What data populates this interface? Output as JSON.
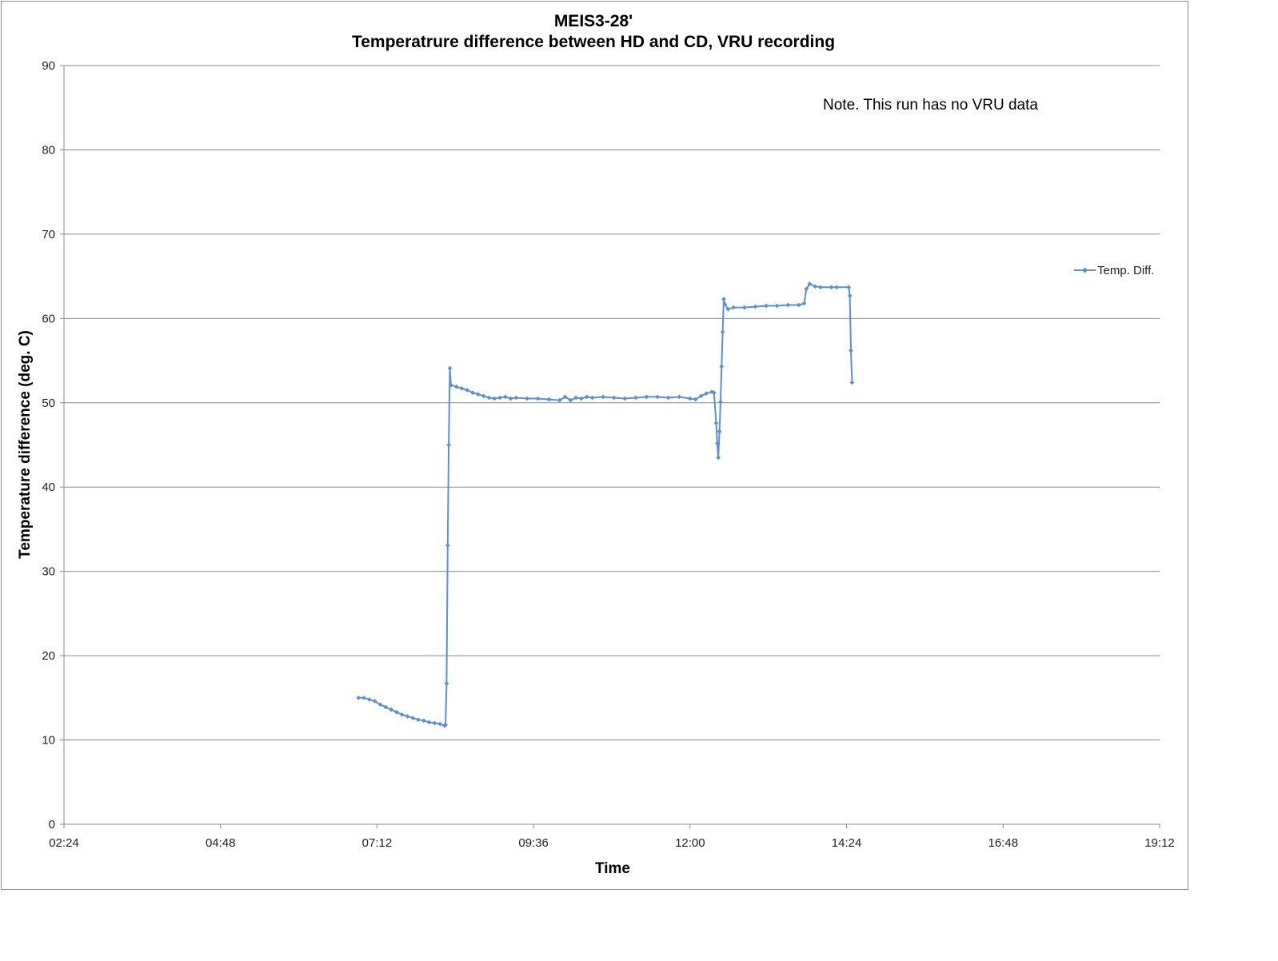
{
  "chart_data": {
    "type": "line",
    "title_line1": "MEIS3-28'",
    "title_line2": "Temperatrure difference between HD and CD, VRU recording",
    "xlabel": "Time",
    "ylabel": "Temperature difference (deg. C)",
    "note": "Note. This run has no VRU data",
    "ylim": [
      0,
      90
    ],
    "yticks": [
      0,
      10,
      20,
      30,
      40,
      50,
      60,
      70,
      80,
      90
    ],
    "xlim": [
      "02:24",
      "19:12"
    ],
    "xticks": [
      "02:24",
      "04:48",
      "07:12",
      "09:36",
      "12:00",
      "14:24",
      "16:48",
      "19:12"
    ],
    "grid": "horizontal",
    "legend_position": "right",
    "series": [
      {
        "name": "Temp. Diff.",
        "color": "#5b8fd6",
        "marker": "small-diamond",
        "points": [
          [
            "06:55",
            15.0
          ],
          [
            "07:00",
            15.0
          ],
          [
            "07:05",
            14.8
          ],
          [
            "07:10",
            14.6
          ],
          [
            "07:15",
            14.2
          ],
          [
            "07:20",
            13.9
          ],
          [
            "07:25",
            13.6
          ],
          [
            "07:30",
            13.3
          ],
          [
            "07:35",
            13.0
          ],
          [
            "07:40",
            12.8
          ],
          [
            "07:45",
            12.6
          ],
          [
            "07:50",
            12.4
          ],
          [
            "07:55",
            12.3
          ],
          [
            "08:00",
            12.1
          ],
          [
            "08:05",
            12.0
          ],
          [
            "08:10",
            11.9
          ],
          [
            "08:14",
            11.7
          ],
          [
            "08:15",
            11.8
          ],
          [
            "08:16",
            16.7
          ],
          [
            "08:17",
            33.1
          ],
          [
            "08:18",
            45.0
          ],
          [
            "08:19",
            54.1
          ],
          [
            "08:20",
            52.1
          ],
          [
            "08:25",
            51.9
          ],
          [
            "08:30",
            51.7
          ],
          [
            "08:35",
            51.5
          ],
          [
            "08:40",
            51.2
          ],
          [
            "08:45",
            51.0
          ],
          [
            "08:50",
            50.8
          ],
          [
            "08:55",
            50.6
          ],
          [
            "09:00",
            50.5
          ],
          [
            "09:05",
            50.6
          ],
          [
            "09:10",
            50.7
          ],
          [
            "09:15",
            50.5
          ],
          [
            "09:20",
            50.6
          ],
          [
            "09:30",
            50.5
          ],
          [
            "09:40",
            50.5
          ],
          [
            "09:50",
            50.4
          ],
          [
            "10:00",
            50.3
          ],
          [
            "10:05",
            50.7
          ],
          [
            "10:10",
            50.3
          ],
          [
            "10:15",
            50.6
          ],
          [
            "10:20",
            50.5
          ],
          [
            "10:25",
            50.7
          ],
          [
            "10:30",
            50.6
          ],
          [
            "10:40",
            50.7
          ],
          [
            "10:50",
            50.6
          ],
          [
            "11:00",
            50.5
          ],
          [
            "11:10",
            50.6
          ],
          [
            "11:20",
            50.7
          ],
          [
            "11:30",
            50.7
          ],
          [
            "11:40",
            50.6
          ],
          [
            "11:50",
            50.7
          ],
          [
            "12:00",
            50.5
          ],
          [
            "12:05",
            50.4
          ],
          [
            "12:10",
            50.8
          ],
          [
            "12:15",
            51.1
          ],
          [
            "12:20",
            51.3
          ],
          [
            "12:22",
            51.2
          ],
          [
            "12:24",
            47.6
          ],
          [
            "12:25",
            45.2
          ],
          [
            "12:26",
            43.5
          ],
          [
            "12:27",
            46.6
          ],
          [
            "12:28",
            50.1
          ],
          [
            "12:29",
            54.3
          ],
          [
            "12:30",
            58.4
          ],
          [
            "12:31",
            62.3
          ],
          [
            "12:32",
            61.7
          ],
          [
            "12:35",
            61.1
          ],
          [
            "12:40",
            61.3
          ],
          [
            "12:50",
            61.3
          ],
          [
            "13:00",
            61.4
          ],
          [
            "13:10",
            61.5
          ],
          [
            "13:20",
            61.5
          ],
          [
            "13:30",
            61.6
          ],
          [
            "13:40",
            61.6
          ],
          [
            "13:45",
            61.8
          ],
          [
            "13:47",
            63.5
          ],
          [
            "13:50",
            64.1
          ],
          [
            "13:55",
            63.8
          ],
          [
            "14:00",
            63.7
          ],
          [
            "14:10",
            63.7
          ],
          [
            "14:15",
            63.7
          ],
          [
            "14:26",
            63.7
          ],
          [
            "14:27",
            62.7
          ],
          [
            "14:28",
            56.2
          ],
          [
            "14:29",
            52.4
          ]
        ]
      }
    ]
  }
}
